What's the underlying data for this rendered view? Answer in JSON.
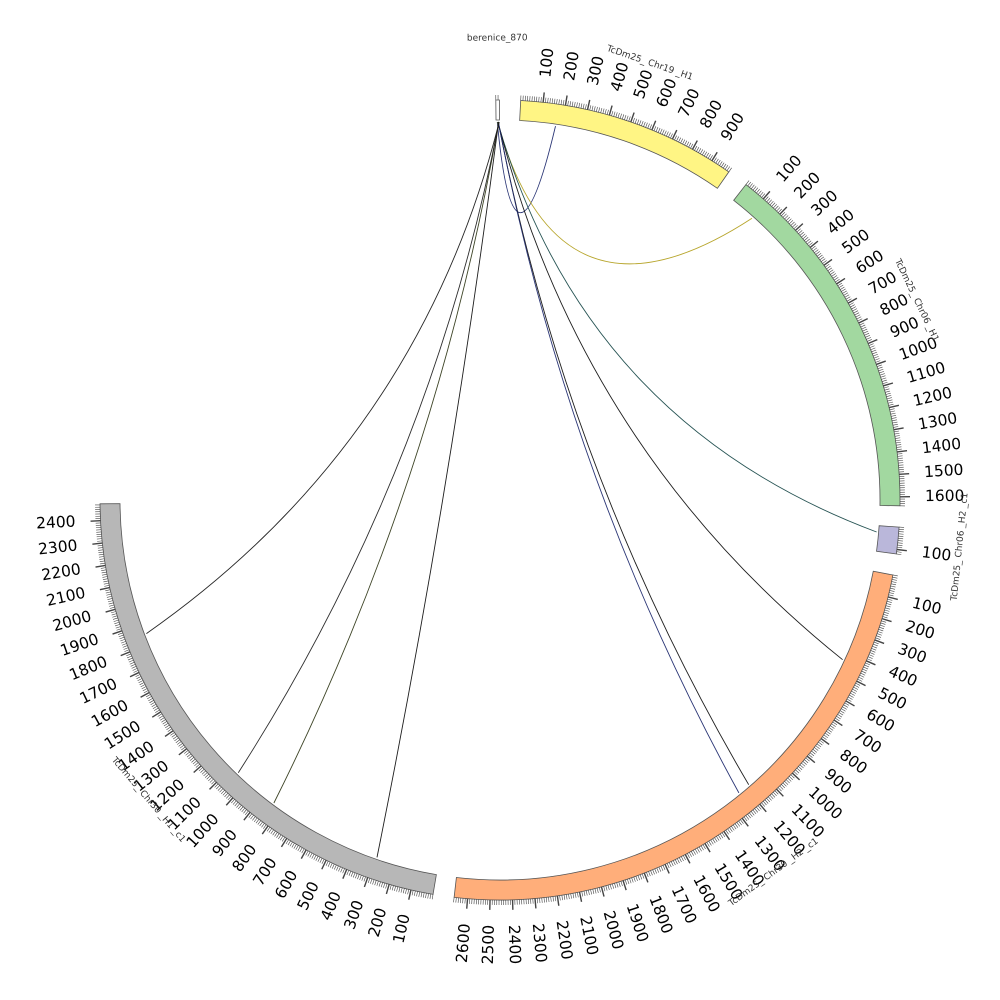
{
  "diagram": {
    "type": "circos",
    "segments": [
      {
        "id": "berenice_870",
        "label": "berenice_870",
        "length": 16,
        "color": "#ffffff",
        "tick_labels": []
      },
      {
        "id": "TcDm25_Chr19_H1",
        "label": "TcDm25_ Chr19 _H1",
        "length": 990,
        "color": "#fff584",
        "tick_labels": [
          "100",
          "200",
          "300",
          "400",
          "500",
          "600",
          "700",
          "800",
          "900"
        ]
      },
      {
        "id": "TcDm25_Chr06_H1",
        "label": "TcDm25_ Chr06 _H1",
        "length": 1640,
        "color": "#a2d8a0",
        "tick_labels": [
          "100",
          "200",
          "300",
          "400",
          "500",
          "600",
          "700",
          "800",
          "900",
          "1000",
          "1100",
          "1200",
          "1300",
          "1400",
          "1500",
          "1600"
        ]
      },
      {
        "id": "TcDm25_Chr06_H2_c1",
        "label": "TcDm25_ Chr06 _H2 _c1",
        "length": 120,
        "color": "#bab7da",
        "tick_labels": [
          "100"
        ]
      },
      {
        "id": "TcDm25_Chr30_H2_c1",
        "label": "TcDm25_ Chr30 _H2 _c1",
        "length": 2660,
        "color": "#ffae7a",
        "tick_labels": [
          "100",
          "200",
          "300",
          "400",
          "500",
          "600",
          "700",
          "800",
          "900",
          "1000",
          "1100",
          "1200",
          "1300",
          "1400",
          "1500",
          "1600",
          "1700",
          "1800",
          "1900",
          "2000",
          "2100",
          "2200",
          "2300",
          "2400",
          "2500",
          "2600"
        ]
      },
      {
        "id": "TcDm25_Chr30_H1_c1",
        "label": "TcDm25_ Chr30 _H1 _c1",
        "length": 2475,
        "color": "#b7b7b7",
        "tick_labels": [
          "100",
          "200",
          "300",
          "400",
          "500",
          "600",
          "700",
          "800",
          "900",
          "1000",
          "1100",
          "1200",
          "1300",
          "1400",
          "1500",
          "1600",
          "1700",
          "1800",
          "1900",
          "2000",
          "2100",
          "2200",
          "2300",
          "2400"
        ]
      }
    ],
    "links": [
      {
        "from": "berenice_870",
        "from_pos": 6,
        "to": "TcDm25_Chr19_H1",
        "to_pos": 170,
        "color": "#1f2a6e"
      },
      {
        "from": "berenice_870",
        "from_pos": 7,
        "to": "TcDm25_Chr06_H1",
        "to_pos": 120,
        "color": "#b3a020"
      },
      {
        "from": "berenice_870",
        "from_pos": 8,
        "to": "TcDm25_Chr06_H2_c1",
        "to_pos": 30,
        "color": "#1a4a4a"
      },
      {
        "from": "berenice_870",
        "from_pos": 9,
        "to": "TcDm25_Chr30_H2_c1",
        "to_pos": 440,
        "color": "#111111"
      },
      {
        "from": "berenice_870",
        "from_pos": 10,
        "to": "TcDm25_Chr30_H2_c1",
        "to_pos": 1180,
        "color": "#111111"
      },
      {
        "from": "berenice_870",
        "from_pos": 11,
        "to": "TcDm25_Chr30_H2_c1",
        "to_pos": 1240,
        "color": "#1f2a6e"
      },
      {
        "from": "berenice_870",
        "from_pos": 12,
        "to": "TcDm25_Chr30_H1_c1",
        "to_pos": 290,
        "color": "#111111"
      },
      {
        "from": "berenice_870",
        "from_pos": 13,
        "to": "TcDm25_Chr30_H1_c1",
        "to_pos": 840,
        "color": "#333a1a"
      },
      {
        "from": "berenice_870",
        "from_pos": 14,
        "to": "TcDm25_Chr30_H1_c1",
        "to_pos": 1060,
        "color": "#222222"
      },
      {
        "from": "berenice_870",
        "from_pos": 15,
        "to": "TcDm25_Chr30_H1_c1",
        "to_pos": 1850,
        "color": "#1a1a1a"
      }
    ]
  }
}
